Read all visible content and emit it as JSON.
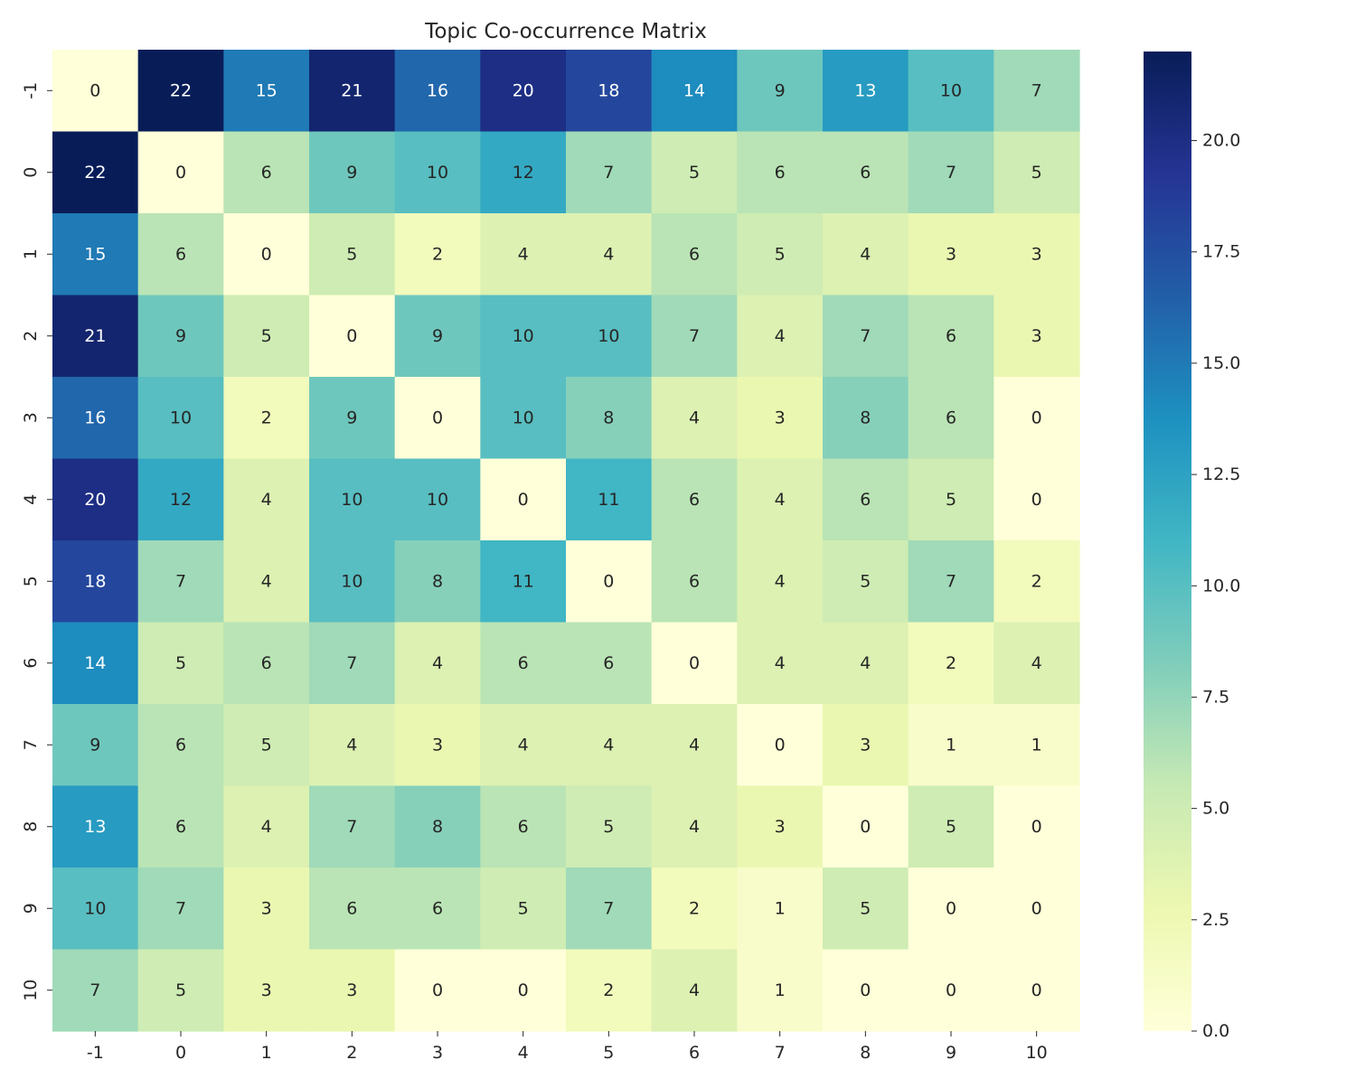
{
  "chart_data": {
    "type": "heatmap",
    "title": "Topic Co-occurrence Matrix",
    "xlabel": "",
    "ylabel": "",
    "x_categories": [
      "-1",
      "0",
      "1",
      "2",
      "3",
      "4",
      "5",
      "6",
      "7",
      "8",
      "9",
      "10"
    ],
    "y_categories": [
      "-1",
      "0",
      "1",
      "2",
      "3",
      "4",
      "5",
      "6",
      "7",
      "8",
      "9",
      "10"
    ],
    "values": [
      [
        0,
        22,
        15,
        21,
        16,
        20,
        18,
        14,
        9,
        13,
        10,
        7
      ],
      [
        22,
        0,
        6,
        9,
        10,
        12,
        7,
        5,
        6,
        6,
        7,
        5
      ],
      [
        15,
        6,
        0,
        5,
        2,
        4,
        4,
        6,
        5,
        4,
        3,
        3
      ],
      [
        21,
        9,
        5,
        0,
        9,
        10,
        10,
        7,
        4,
        7,
        6,
        3
      ],
      [
        16,
        10,
        2,
        9,
        0,
        10,
        8,
        4,
        3,
        8,
        6,
        0
      ],
      [
        20,
        12,
        4,
        10,
        10,
        0,
        11,
        6,
        4,
        6,
        5,
        0
      ],
      [
        18,
        7,
        4,
        10,
        8,
        11,
        0,
        6,
        4,
        5,
        7,
        2
      ],
      [
        14,
        5,
        6,
        7,
        4,
        6,
        6,
        0,
        4,
        4,
        2,
        4
      ],
      [
        9,
        6,
        5,
        4,
        3,
        4,
        4,
        4,
        0,
        3,
        1,
        1
      ],
      [
        13,
        6,
        4,
        7,
        8,
        6,
        5,
        4,
        3,
        0,
        5,
        0
      ],
      [
        10,
        7,
        3,
        6,
        6,
        5,
        7,
        2,
        1,
        5,
        0,
        0
      ],
      [
        7,
        5,
        3,
        3,
        0,
        0,
        2,
        4,
        1,
        0,
        0,
        0
      ]
    ],
    "colormap": "YlGnBu",
    "color_stops": [
      "#ffffd9",
      "#edf8b1",
      "#c7e9b4",
      "#7fcdbb",
      "#41b6c4",
      "#1d91c0",
      "#225ea8",
      "#253494",
      "#081d58"
    ],
    "vmin": 0,
    "vmax": 22,
    "colorbar_ticks": [
      "0.0",
      "2.5",
      "5.0",
      "7.5",
      "10.0",
      "12.5",
      "15.0",
      "17.5",
      "20.0"
    ],
    "annotate": true,
    "grid": false
  }
}
